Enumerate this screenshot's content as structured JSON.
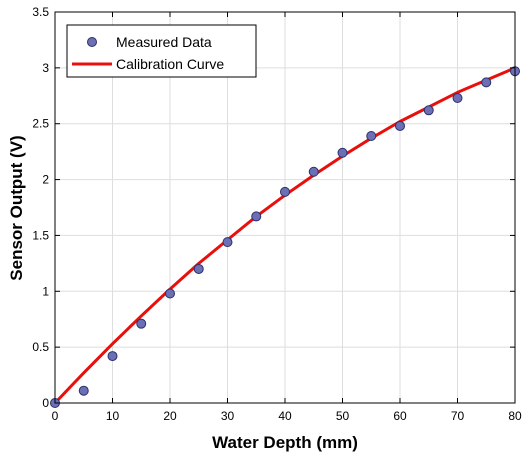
{
  "chart_data": {
    "type": "scatter",
    "xlabel": "Water Depth (mm)",
    "ylabel": "Sensor Output (V)",
    "xlim": [
      0,
      80
    ],
    "ylim": [
      0,
      3.5
    ],
    "xticks": [
      "0",
      "10",
      "20",
      "30",
      "40",
      "50",
      "60",
      "70",
      "80"
    ],
    "yticks": [
      "0",
      "0.5",
      "1",
      "1.5",
      "2",
      "2.5",
      "3",
      "3.5"
    ],
    "grid": true,
    "legend_position": "top-left",
    "series": [
      {
        "name": "Measured Data",
        "kind": "markers",
        "color": "#6b6fb4",
        "x": [
          0,
          5,
          10,
          15,
          20,
          25,
          30,
          35,
          40,
          45,
          50,
          55,
          60,
          65,
          70,
          75,
          80
        ],
        "y": [
          0.0,
          0.11,
          0.42,
          0.71,
          0.98,
          1.2,
          1.44,
          1.67,
          1.89,
          2.07,
          2.24,
          2.39,
          2.48,
          2.62,
          2.73,
          2.87,
          2.97
        ]
      },
      {
        "name": "Calibration Curve",
        "kind": "line",
        "color": "#e8100c",
        "x": [
          0,
          5,
          10,
          15,
          20,
          25,
          30,
          35,
          40,
          45,
          50,
          55,
          60,
          65,
          70,
          75,
          80
        ],
        "y": [
          0.0,
          0.27,
          0.53,
          0.78,
          1.02,
          1.25,
          1.46,
          1.67,
          1.86,
          2.04,
          2.21,
          2.37,
          2.52,
          2.65,
          2.78,
          2.89,
          3.0
        ]
      }
    ]
  }
}
